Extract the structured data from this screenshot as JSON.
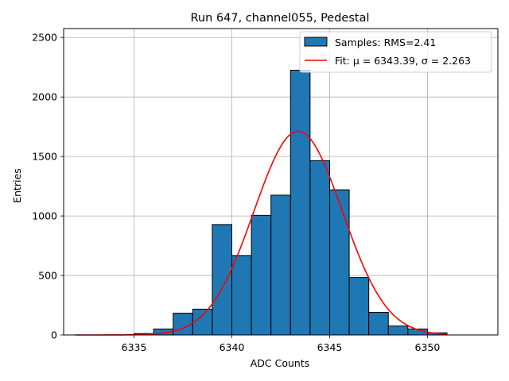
{
  "chart_data": {
    "type": "bar",
    "title": "Run 647, channel055, Pedestal",
    "xlabel": "ADC Counts",
    "ylabel": "Entries",
    "xlim": [
      6331.4,
      6353.6
    ],
    "ylim": [
      0,
      2575
    ],
    "xticks": [
      6335,
      6340,
      6345,
      6350
    ],
    "yticks": [
      0,
      500,
      1000,
      1500,
      2000,
      2500
    ],
    "grid": true,
    "legend_position": "top-right",
    "histogram": {
      "name": "Samples: RMS=2.41",
      "color": "#1f77b4",
      "bin_width": 1,
      "bin_starts": [
        6335,
        6336,
        6337,
        6338,
        6339,
        6340,
        6341,
        6342,
        6343,
        6344,
        6345,
        6346,
        6347,
        6348,
        6349,
        6350
      ],
      "values": [
        12,
        50,
        183,
        217,
        928,
        668,
        1005,
        1175,
        2225,
        1465,
        1220,
        483,
        190,
        75,
        50,
        18
      ]
    },
    "fit": {
      "name": "Fit: μ = 6343.39, σ = 2.263",
      "color": "#ff0000",
      "mu": 6343.39,
      "sigma": 2.263,
      "amplitude": 1712,
      "x_range": [
        6332,
        6351
      ]
    }
  }
}
